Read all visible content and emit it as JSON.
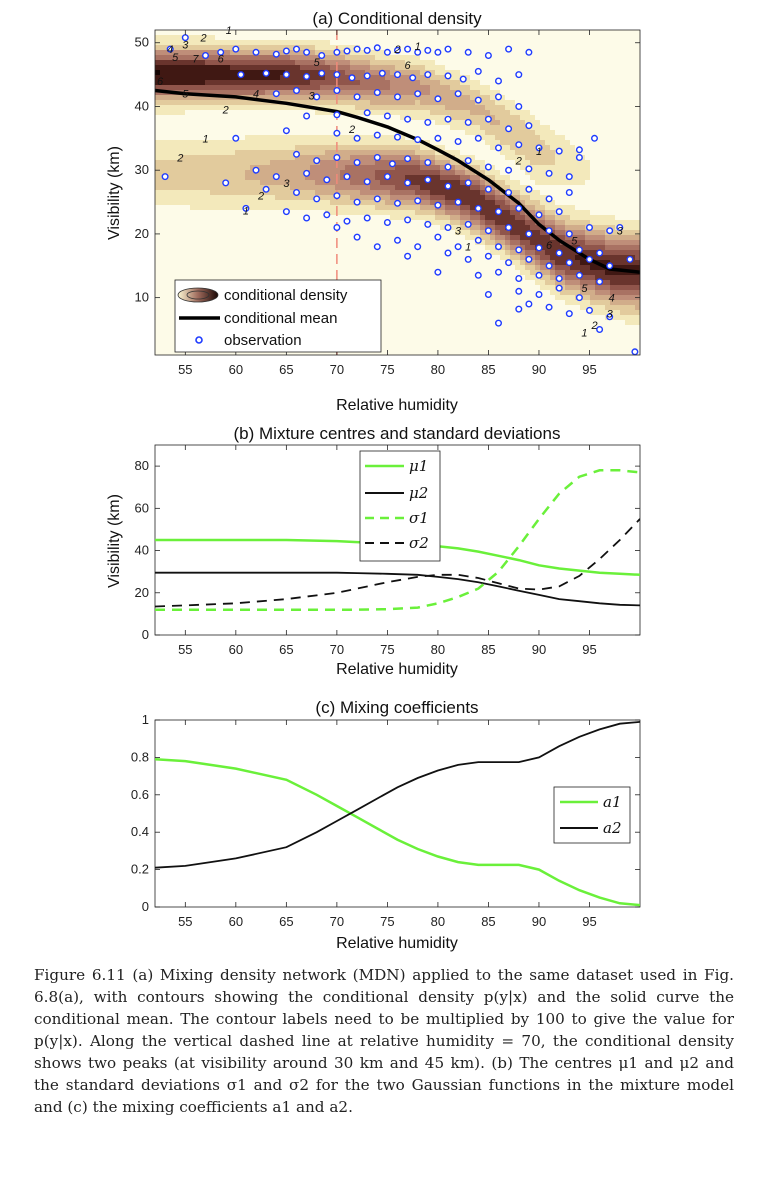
{
  "caption": "Figure 6.11 (a) Mixing density network (MDN) applied to the same dataset used in Fig. 6.8(a), with contours showing the conditional density p(y|x) and the solid curve the conditional mean. The contour labels need to be multiplied by 100 to give the value for p(y|x). Along the vertical dashed line at relative humidity = 70, the conditional density shows two peaks (at visibility around 30 km and 45 km). (b) The centres μ1 and μ2 and the standard deviations σ1 and σ2 for the two Gaussian functions in the mixture model and (c) the mixing coefficients a1 and a2.",
  "colors": {
    "mu1": "#6af03a",
    "mu2": "#111111",
    "sigma1": "#6af03a",
    "sigma2": "#111111",
    "a1": "#6af03a",
    "a2": "#111111",
    "observation": "#1f3cff",
    "dashed_line": "#f08a7a",
    "density_low": "#fbf6d2",
    "density_mid": "#b98472",
    "density_high": "#1a0704"
  },
  "chart_data": [
    {
      "type": "contour",
      "title": "(a) Conditional density",
      "xlabel": "Relative humidity",
      "ylabel": "Visibility (km)",
      "xlim": [
        52,
        100
      ],
      "ylim": [
        1,
        52
      ],
      "xticks": [
        55,
        60,
        65,
        70,
        75,
        80,
        85,
        90,
        95
      ],
      "yticks": [
        10,
        20,
        30,
        40,
        50
      ],
      "legend": [
        "conditional density",
        "conditional mean",
        "observation"
      ],
      "legend_position": "bottom-left",
      "vertical_line_x": 70,
      "conditional_mean": {
        "x": [
          52,
          55,
          60,
          65,
          70,
          72,
          75,
          78,
          80,
          82,
          85,
          88,
          90,
          92,
          95,
          97,
          100
        ],
        "y": [
          42.5,
          42,
          41.5,
          40.5,
          39.2,
          38.3,
          36.8,
          34.8,
          33.2,
          31.5,
          28.5,
          24.8,
          21.5,
          19,
          16,
          14.5,
          14
        ]
      },
      "contour_labels": [
        {
          "x": 53.5,
          "y": 49,
          "text": "4"
        },
        {
          "x": 55,
          "y": 49.7,
          "text": "3"
        },
        {
          "x": 54,
          "y": 47.8,
          "text": "5"
        },
        {
          "x": 56,
          "y": 47.5,
          "text": "7"
        },
        {
          "x": 56.8,
          "y": 50.8,
          "text": "2"
        },
        {
          "x": 58.5,
          "y": 47.5,
          "text": "6"
        },
        {
          "x": 59.3,
          "y": 52,
          "text": "1"
        },
        {
          "x": 55,
          "y": 42,
          "text": "5"
        },
        {
          "x": 52.5,
          "y": 44,
          "text": "6"
        },
        {
          "x": 59,
          "y": 39.5,
          "text": "2"
        },
        {
          "x": 57,
          "y": 35,
          "text": "1"
        },
        {
          "x": 54.5,
          "y": 32,
          "text": "2"
        },
        {
          "x": 62,
          "y": 42,
          "text": "4"
        },
        {
          "x": 67.5,
          "y": 41.7,
          "text": "3"
        },
        {
          "x": 68,
          "y": 47,
          "text": "5"
        },
        {
          "x": 71.5,
          "y": 36.5,
          "text": "2"
        },
        {
          "x": 65,
          "y": 28,
          "text": "3"
        },
        {
          "x": 62.5,
          "y": 26,
          "text": "2"
        },
        {
          "x": 61,
          "y": 23.7,
          "text": "1"
        },
        {
          "x": 76,
          "y": 49,
          "text": "2"
        },
        {
          "x": 78,
          "y": 49.5,
          "text": "1"
        },
        {
          "x": 77,
          "y": 46.5,
          "text": "6"
        },
        {
          "x": 82,
          "y": 20.5,
          "text": "3"
        },
        {
          "x": 83,
          "y": 18,
          "text": "1"
        },
        {
          "x": 88,
          "y": 31.5,
          "text": "2"
        },
        {
          "x": 90,
          "y": 33,
          "text": "1"
        },
        {
          "x": 91,
          "y": 18.3,
          "text": "6"
        },
        {
          "x": 93.5,
          "y": 19,
          "text": "5"
        },
        {
          "x": 94.5,
          "y": 11.5,
          "text": "5"
        },
        {
          "x": 97.2,
          "y": 10,
          "text": "4"
        },
        {
          "x": 97,
          "y": 7.5,
          "text": "3"
        },
        {
          "x": 95.5,
          "y": 5.7,
          "text": "2"
        },
        {
          "x": 94.5,
          "y": 4.5,
          "text": "1"
        },
        {
          "x": 98,
          "y": 20.5,
          "text": "3"
        }
      ],
      "observations": [
        [
          53.5,
          49
        ],
        [
          55,
          50.8
        ],
        [
          57,
          48
        ],
        [
          58.5,
          48.5
        ],
        [
          60,
          49
        ],
        [
          62,
          48.5
        ],
        [
          64,
          48.2
        ],
        [
          65,
          48.7
        ],
        [
          66,
          49
        ],
        [
          67,
          48.5
        ],
        [
          68.5,
          48
        ],
        [
          70,
          48.5
        ],
        [
          71,
          48.7
        ],
        [
          72,
          49
        ],
        [
          73,
          48.8
        ],
        [
          74,
          49.2
        ],
        [
          75,
          48.5
        ],
        [
          76,
          48.8
        ],
        [
          77,
          49
        ],
        [
          78,
          48.5
        ],
        [
          79,
          48.8
        ],
        [
          80,
          48.5
        ],
        [
          81,
          49
        ],
        [
          83,
          48.5
        ],
        [
          85,
          48
        ],
        [
          87,
          49
        ],
        [
          89,
          48.5
        ],
        [
          60.5,
          45
        ],
        [
          63,
          45.2
        ],
        [
          65,
          45
        ],
        [
          67,
          44.7
        ],
        [
          68.5,
          45.2
        ],
        [
          70,
          45
        ],
        [
          71.5,
          44.5
        ],
        [
          73,
          44.8
        ],
        [
          74.5,
          45.2
        ],
        [
          76,
          45
        ],
        [
          77.5,
          44.5
        ],
        [
          79,
          45
        ],
        [
          81,
          44.8
        ],
        [
          82.5,
          44.3
        ],
        [
          84,
          45.5
        ],
        [
          86,
          44
        ],
        [
          88,
          45
        ],
        [
          64,
          42
        ],
        [
          66,
          42.5
        ],
        [
          68,
          41.5
        ],
        [
          70,
          42.5
        ],
        [
          72,
          41.5
        ],
        [
          74,
          42.2
        ],
        [
          76,
          41.5
        ],
        [
          78,
          42
        ],
        [
          80,
          41.2
        ],
        [
          82,
          42
        ],
        [
          84,
          41
        ],
        [
          86,
          41.5
        ],
        [
          88,
          40
        ],
        [
          67,
          38.5
        ],
        [
          70,
          38.7
        ],
        [
          73,
          39
        ],
        [
          75,
          38.5
        ],
        [
          77,
          38
        ],
        [
          79,
          37.5
        ],
        [
          81,
          38
        ],
        [
          83,
          37.5
        ],
        [
          85,
          38
        ],
        [
          87,
          36.5
        ],
        [
          89,
          37
        ],
        [
          60,
          35
        ],
        [
          65,
          36.2
        ],
        [
          70,
          35.8
        ],
        [
          72,
          35
        ],
        [
          74,
          35.5
        ],
        [
          76,
          35.2
        ],
        [
          78,
          34.8
        ],
        [
          80,
          35
        ],
        [
          82,
          34.5
        ],
        [
          84,
          35
        ],
        [
          86,
          33.5
        ],
        [
          88,
          34
        ],
        [
          90,
          33.5
        ],
        [
          92,
          33
        ],
        [
          94,
          33.2
        ],
        [
          66,
          32.5
        ],
        [
          68,
          31.5
        ],
        [
          70,
          32
        ],
        [
          72,
          31.2
        ],
        [
          74,
          32
        ],
        [
          75.5,
          31
        ],
        [
          77,
          31.8
        ],
        [
          79,
          31.2
        ],
        [
          81,
          30.5
        ],
        [
          83,
          31.5
        ],
        [
          85,
          30.5
        ],
        [
          87,
          30
        ],
        [
          89,
          30.2
        ],
        [
          91,
          29.5
        ],
        [
          93,
          29
        ],
        [
          62,
          30
        ],
        [
          64,
          29
        ],
        [
          67,
          29.5
        ],
        [
          69,
          28.5
        ],
        [
          71,
          29
        ],
        [
          73,
          28.2
        ],
        [
          75,
          29
        ],
        [
          77,
          28
        ],
        [
          79,
          28.5
        ],
        [
          81,
          27.5
        ],
        [
          83,
          28
        ],
        [
          85,
          27
        ],
        [
          87,
          26.5
        ],
        [
          89,
          27
        ],
        [
          91,
          25.5
        ],
        [
          93,
          26.5
        ],
        [
          53,
          29
        ],
        [
          59,
          28
        ],
        [
          63,
          27
        ],
        [
          66,
          26.5
        ],
        [
          68,
          25.5
        ],
        [
          70,
          26
        ],
        [
          72,
          25
        ],
        [
          74,
          25.5
        ],
        [
          76,
          24.8
        ],
        [
          78,
          25.2
        ],
        [
          80,
          24.5
        ],
        [
          82,
          25
        ],
        [
          84,
          24
        ],
        [
          86,
          23.5
        ],
        [
          88,
          24
        ],
        [
          90,
          23
        ],
        [
          92,
          23.5
        ],
        [
          61,
          24
        ],
        [
          65,
          23.5
        ],
        [
          67,
          22.5
        ],
        [
          69,
          23
        ],
        [
          71,
          22
        ],
        [
          73,
          22.5
        ],
        [
          75,
          21.8
        ],
        [
          77,
          22.2
        ],
        [
          79,
          21.5
        ],
        [
          81,
          21
        ],
        [
          83,
          21.5
        ],
        [
          85,
          20.5
        ],
        [
          87,
          21
        ],
        [
          89,
          20
        ],
        [
          91,
          20.5
        ],
        [
          93,
          20
        ],
        [
          95,
          21
        ],
        [
          70,
          21
        ],
        [
          72,
          19.5
        ],
        [
          76,
          19
        ],
        [
          78,
          18
        ],
        [
          80,
          19.5
        ],
        [
          82,
          18
        ],
        [
          84,
          19
        ],
        [
          86,
          18
        ],
        [
          88,
          17.5
        ],
        [
          90,
          17.8
        ],
        [
          92,
          17
        ],
        [
          94,
          17.5
        ],
        [
          96,
          17
        ],
        [
          74,
          18
        ],
        [
          77,
          16.5
        ],
        [
          81,
          17
        ],
        [
          83,
          16
        ],
        [
          85,
          16.5
        ],
        [
          87,
          15.5
        ],
        [
          89,
          16
        ],
        [
          91,
          15
        ],
        [
          93,
          15.5
        ],
        [
          95,
          16
        ],
        [
          97,
          15
        ],
        [
          80,
          14
        ],
        [
          84,
          13.5
        ],
        [
          86,
          14
        ],
        [
          88,
          13
        ],
        [
          90,
          13.5
        ],
        [
          92,
          13
        ],
        [
          94,
          13.5
        ],
        [
          96,
          12.5
        ],
        [
          88,
          11
        ],
        [
          90,
          10.5
        ],
        [
          92,
          11.5
        ],
        [
          94,
          10
        ],
        [
          89,
          9
        ],
        [
          91,
          8.5
        ],
        [
          93,
          7.5
        ],
        [
          95,
          8
        ],
        [
          97,
          7
        ],
        [
          85,
          10.5
        ],
        [
          88,
          8.2
        ],
        [
          86,
          6
        ],
        [
          96,
          5
        ],
        [
          99.5,
          1.5
        ],
        [
          98,
          21
        ],
        [
          94,
          32
        ],
        [
          99,
          16
        ],
        [
          97,
          20.5
        ],
        [
          95.5,
          35
        ]
      ]
    },
    {
      "type": "line",
      "title": "(b) Mixture centres and standard deviations",
      "xlabel": "Relative humidity",
      "ylabel": "Visibility (km)",
      "xlim": [
        52,
        100
      ],
      "ylim": [
        0,
        90
      ],
      "xticks": [
        55,
        60,
        65,
        70,
        75,
        80,
        85,
        90,
        95
      ],
      "yticks": [
        0,
        20,
        40,
        60,
        80
      ],
      "legend_position": "top",
      "x": [
        52,
        55,
        60,
        65,
        70,
        72,
        75,
        78,
        80,
        82,
        84,
        86,
        88,
        90,
        92,
        94,
        96,
        98,
        100
      ],
      "series": [
        {
          "name": "μ1",
          "style": "solid",
          "values": [
            45,
            45,
            45,
            45,
            44.5,
            44,
            43.5,
            43,
            42,
            41,
            39.5,
            37.5,
            35.5,
            33,
            31.5,
            30.5,
            29.5,
            29,
            28.5
          ]
        },
        {
          "name": "μ2",
          "style": "solid",
          "values": [
            29.5,
            29.5,
            29.5,
            29.5,
            29.5,
            29.3,
            29,
            28.5,
            27.5,
            26.5,
            25,
            23,
            21,
            19,
            17,
            16,
            15,
            14.3,
            14
          ]
        },
        {
          "name": "σ1",
          "style": "dashed",
          "values": [
            12,
            12,
            12,
            12,
            12,
            12,
            12.2,
            13,
            15,
            18,
            22,
            30,
            42,
            55,
            67,
            75,
            78,
            78,
            77
          ]
        },
        {
          "name": "σ2",
          "style": "dashed",
          "values": [
            13.5,
            14,
            15,
            17,
            20,
            22,
            25,
            27.5,
            28.5,
            28.5,
            27,
            24.5,
            22,
            21.5,
            23,
            28,
            36,
            45,
            55
          ]
        }
      ]
    },
    {
      "type": "line",
      "title": "(c) Mixing coefficients",
      "xlabel": "Relative humidity",
      "ylabel": "",
      "xlim": [
        52,
        100
      ],
      "ylim": [
        0,
        1
      ],
      "xticks": [
        55,
        60,
        65,
        70,
        75,
        80,
        85,
        90,
        95
      ],
      "yticks": [
        0,
        0.2,
        0.4,
        0.6,
        0.8,
        1
      ],
      "legend_position": "right",
      "x": [
        52,
        55,
        60,
        65,
        68,
        70,
        72,
        74,
        76,
        78,
        80,
        82,
        84,
        86,
        88,
        90,
        92,
        94,
        96,
        98,
        100
      ],
      "series": [
        {
          "name": "a1",
          "style": "solid",
          "values": [
            0.79,
            0.78,
            0.74,
            0.68,
            0.6,
            0.54,
            0.48,
            0.42,
            0.36,
            0.31,
            0.27,
            0.24,
            0.225,
            0.225,
            0.225,
            0.2,
            0.14,
            0.09,
            0.05,
            0.02,
            0.01
          ]
        },
        {
          "name": "a2",
          "style": "solid",
          "values": [
            0.21,
            0.22,
            0.26,
            0.32,
            0.4,
            0.46,
            0.52,
            0.58,
            0.64,
            0.69,
            0.73,
            0.76,
            0.775,
            0.775,
            0.775,
            0.8,
            0.86,
            0.91,
            0.95,
            0.98,
            0.99
          ]
        }
      ]
    }
  ]
}
